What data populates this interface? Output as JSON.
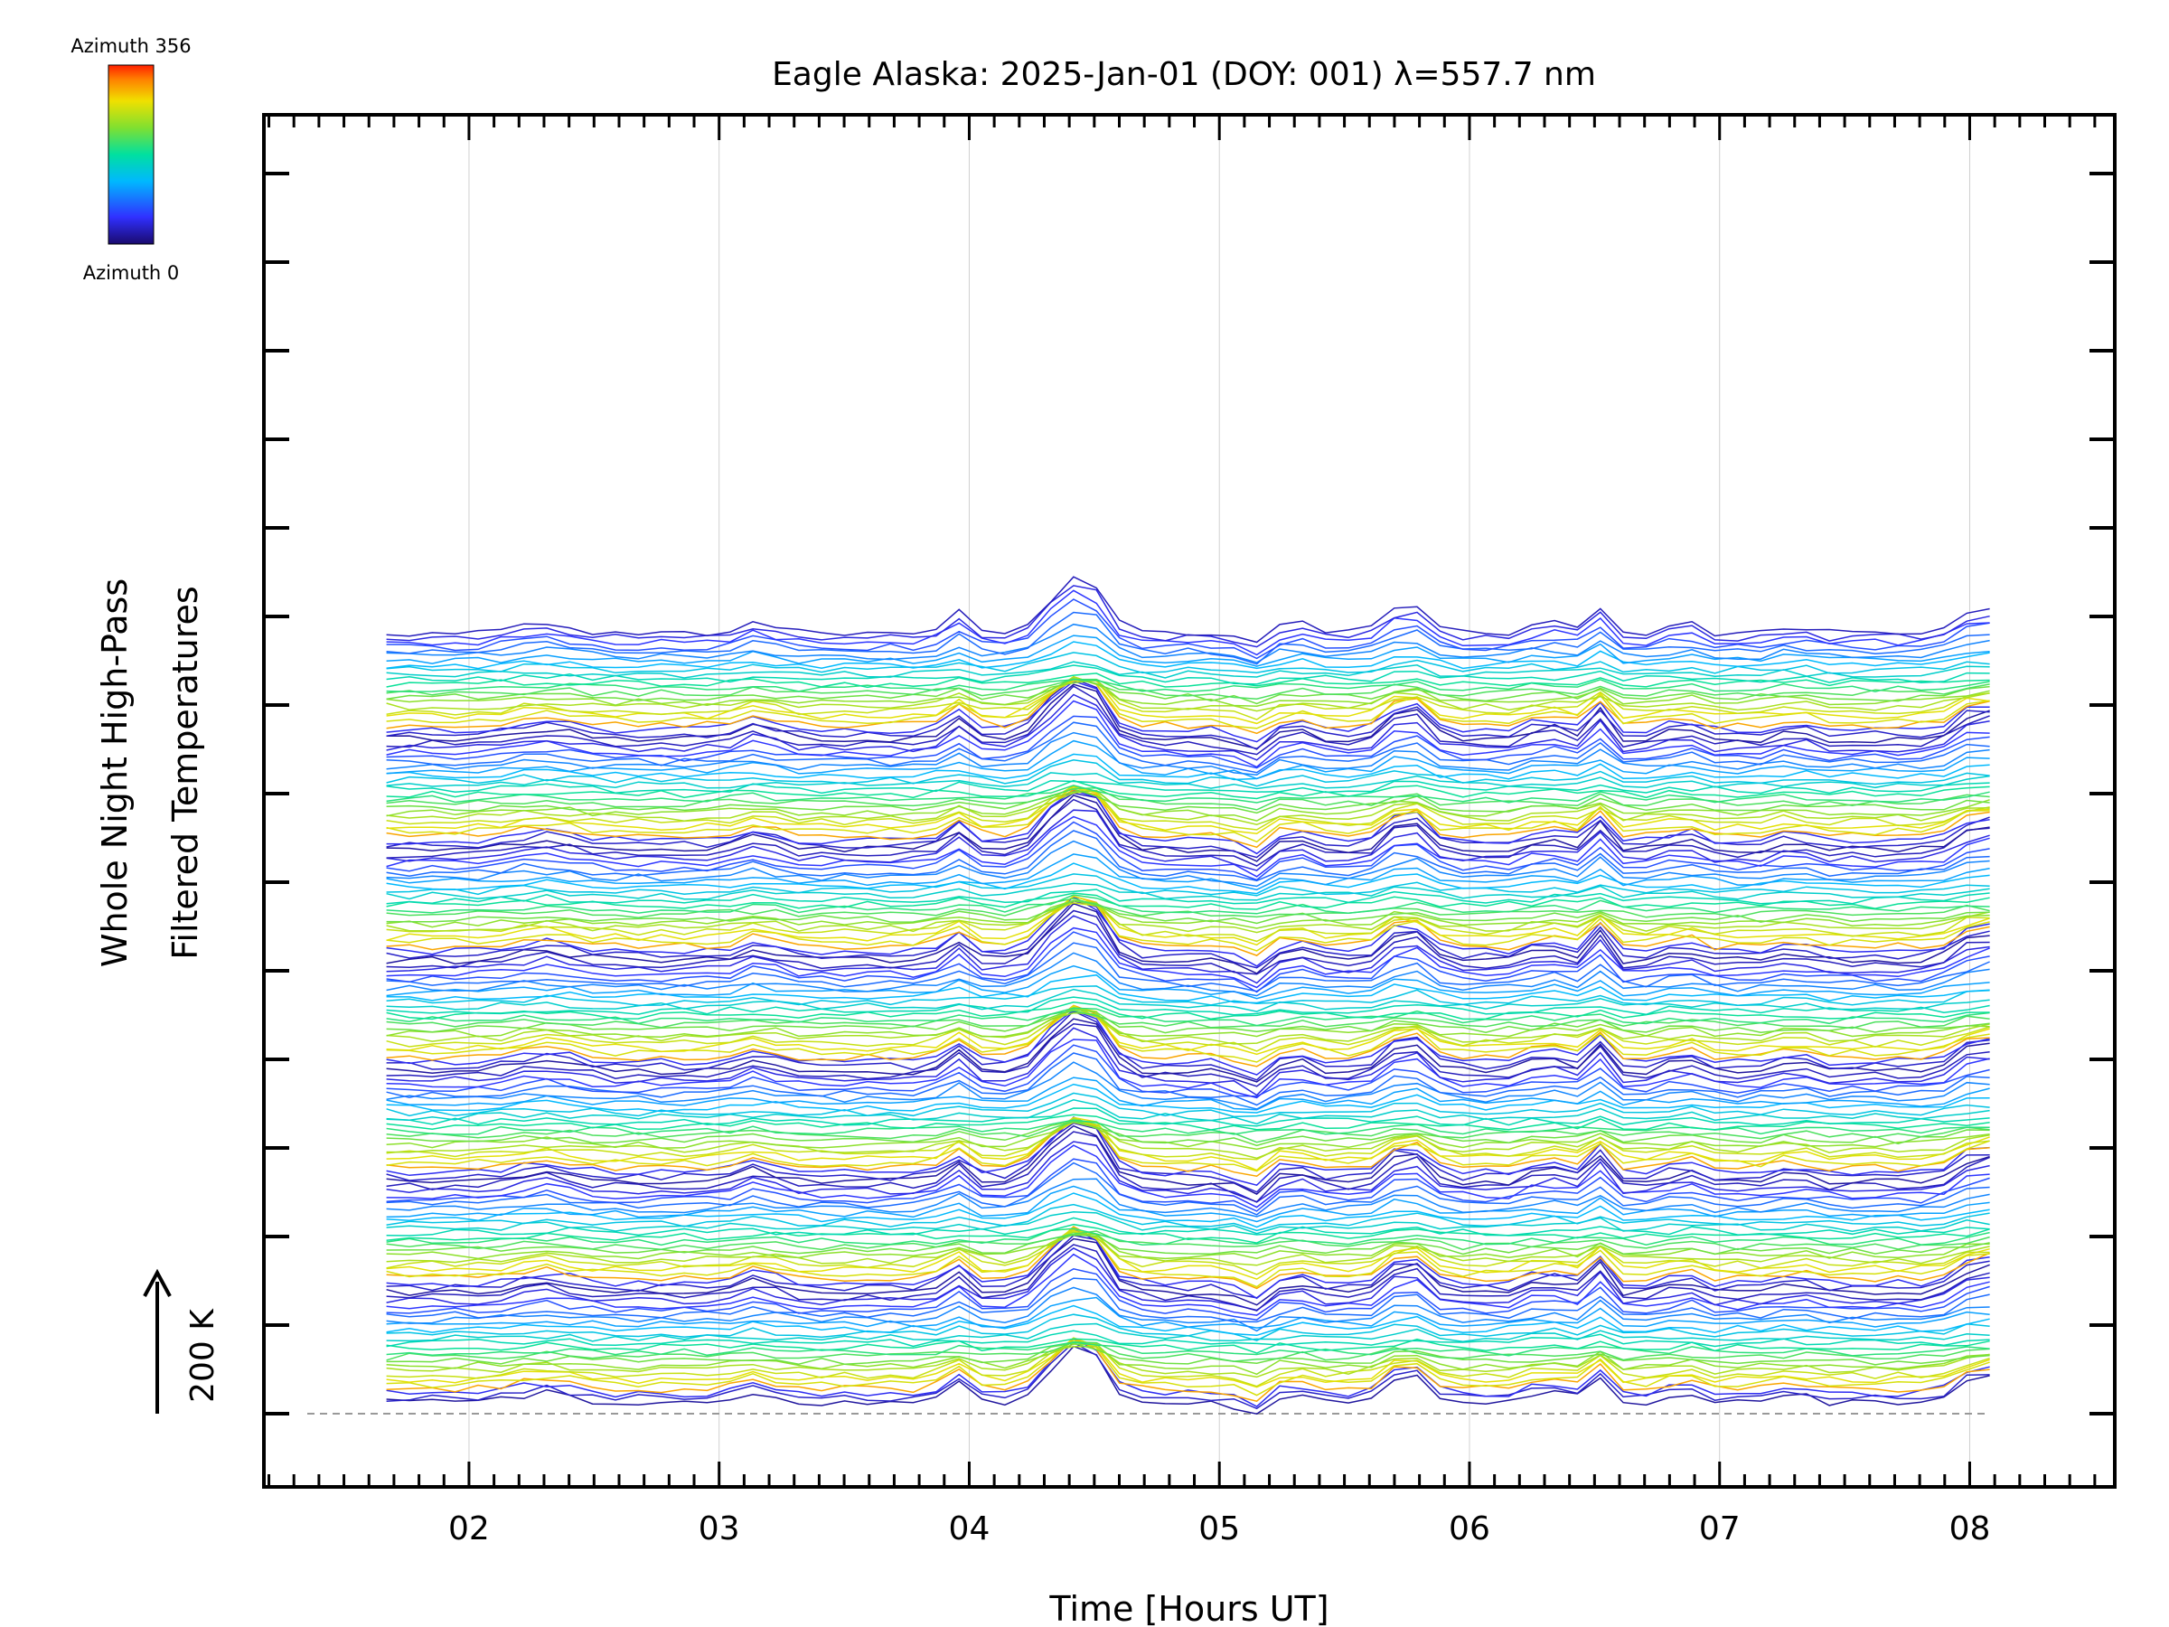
{
  "chart_data": {
    "type": "line",
    "title": "Eagle Alaska: 2025-Jan-01 (DOY: 001) λ=557.7 nm",
    "xlabel": "Time [Hours UT]",
    "ylabel_line1": "Whole Night High-Pass",
    "ylabel_line2": "Filtered Temperatures",
    "scale_label": "200 K",
    "x_tick_labels": [
      "02",
      "03",
      "04",
      "05",
      "06",
      "07",
      "08"
    ],
    "x_ticks": [
      2,
      3,
      4,
      5,
      6,
      7,
      8
    ],
    "xlim": [
      1.18,
      8.58
    ],
    "colorbar": {
      "top_label": "Azimuth  356",
      "bottom_label": "Azimuth  0",
      "min": 0,
      "max": 356,
      "colormap": "rainbow"
    },
    "grid": true,
    "x_start": 1.67,
    "x_end": 8.08,
    "stack_groups": 7,
    "traces_per_group": 24,
    "notes_visible": "Stacked, vertically offset temperature traces coloured by azimuth (0–356°), with common features near 04.4, 05.8 and 06.5 UT."
  },
  "colors": {
    "axis": "#000000",
    "grid": "#d0d0d0",
    "baseline": "#999999"
  }
}
